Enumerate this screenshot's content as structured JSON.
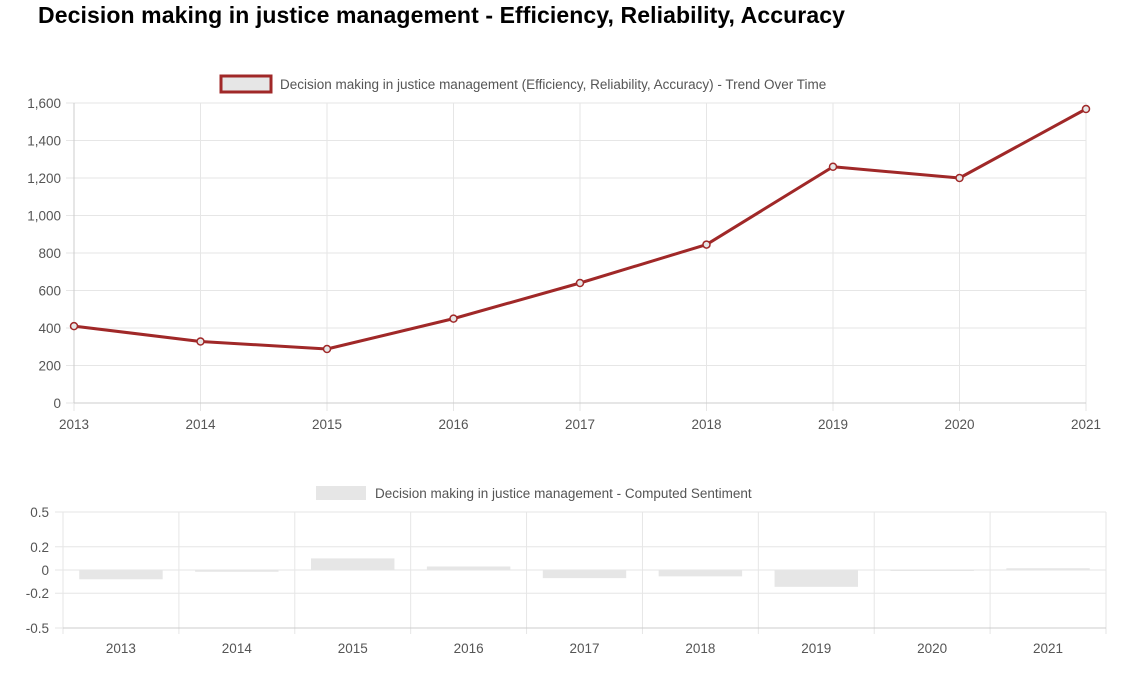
{
  "page_title": "Decision making in justice management - Efficiency, Reliability, Accuracy",
  "colors": {
    "line": "#a02828",
    "bar": "#e6e6e6",
    "grid": "#e6e6e6",
    "axis": "#cccccc",
    "text": "#555555"
  },
  "chart_data": [
    {
      "type": "line",
      "legend": "Decision making in justice management (Efficiency, Reliability, Accuracy) - Trend Over Time",
      "x": [
        "2013",
        "2014",
        "2015",
        "2016",
        "2017",
        "2018",
        "2019",
        "2020",
        "2021"
      ],
      "values": [
        410,
        328,
        288,
        450,
        640,
        845,
        1260,
        1200,
        1568
      ],
      "ylim": [
        0,
        1600
      ],
      "yticks": [
        0,
        200,
        400,
        600,
        800,
        1000,
        1200,
        1400,
        1600
      ],
      "ytick_labels": [
        "0",
        "200",
        "400",
        "600",
        "800",
        "1,000",
        "1,200",
        "1,400",
        "1,600"
      ],
      "grid": true,
      "legend_position": "top"
    },
    {
      "type": "bar",
      "legend": "Decision making in justice management - Computed Sentiment",
      "categories": [
        "2013",
        "2014",
        "2015",
        "2016",
        "2017",
        "2018",
        "2019",
        "2020",
        "2021"
      ],
      "values": [
        -0.08,
        -0.015,
        0.1,
        0.03,
        -0.07,
        -0.055,
        -0.145,
        -0.005,
        0.015
      ],
      "ylim": [
        -0.5,
        0.5
      ],
      "yticks": [
        0.5,
        0.2,
        0,
        -0.2,
        -0.5
      ],
      "ytick_labels": [
        "0.5",
        "0.2",
        "0",
        "-0.2",
        "-0.5"
      ],
      "grid": true,
      "legend_position": "top"
    }
  ]
}
